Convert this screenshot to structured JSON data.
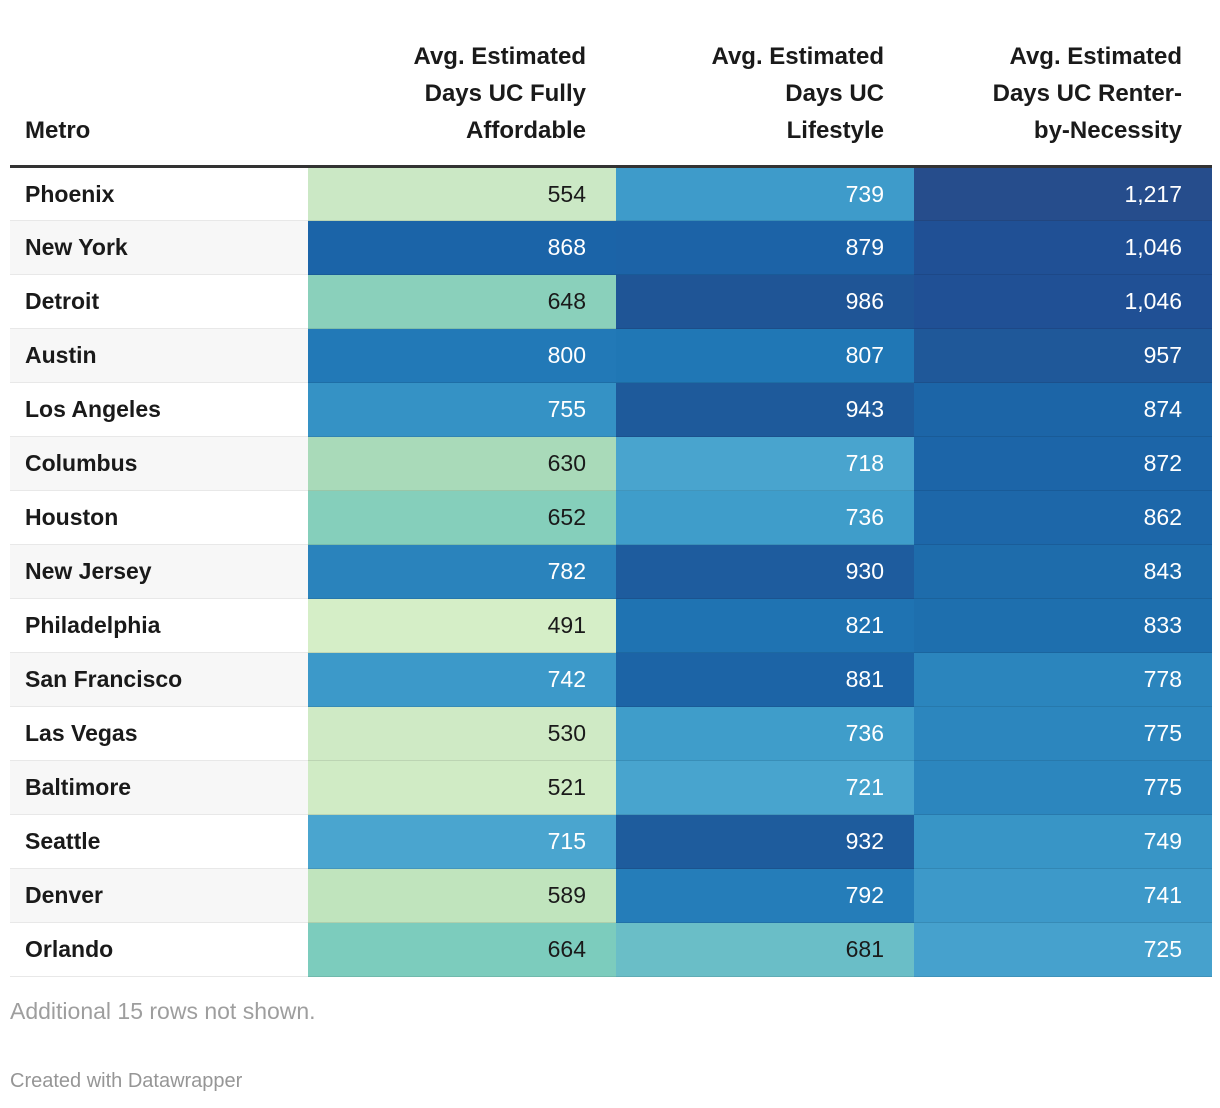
{
  "header": {
    "metro": "Metro",
    "columns": [
      "Avg. Estimated\nDays UC Fully\nAffordable",
      "Avg. Estimated\nDays UC\nLifestyle",
      "Avg. Estimated\nDays UC Renter-\nby-Necessity"
    ]
  },
  "rows": [
    {
      "metro": "Phoenix",
      "cells": [
        {
          "v": "554",
          "bg": "#cbe8c5",
          "fg": "dark"
        },
        {
          "v": "739",
          "bg": "#3e9bca",
          "fg": "light"
        },
        {
          "v": "1,217",
          "bg": "#264d8c",
          "fg": "light"
        }
      ]
    },
    {
      "metro": "New York",
      "cells": [
        {
          "v": "868",
          "bg": "#1b64a8",
          "fg": "light"
        },
        {
          "v": "879",
          "bg": "#1c63a7",
          "fg": "light"
        },
        {
          "v": "1,046",
          "bg": "#205095",
          "fg": "light"
        }
      ]
    },
    {
      "metro": "Detroit",
      "cells": [
        {
          "v": "648",
          "bg": "#8ad0bb",
          "fg": "dark"
        },
        {
          "v": "986",
          "bg": "#1f5596",
          "fg": "light"
        },
        {
          "v": "1,046",
          "bg": "#205095",
          "fg": "light"
        }
      ]
    },
    {
      "metro": "Austin",
      "cells": [
        {
          "v": "800",
          "bg": "#2279b7",
          "fg": "light"
        },
        {
          "v": "807",
          "bg": "#2077b5",
          "fg": "light"
        },
        {
          "v": "957",
          "bg": "#1f5899",
          "fg": "light"
        }
      ]
    },
    {
      "metro": "Los Angeles",
      "cells": [
        {
          "v": "755",
          "bg": "#3592c5",
          "fg": "light"
        },
        {
          "v": "943",
          "bg": "#1e5a9b",
          "fg": "light"
        },
        {
          "v": "874",
          "bg": "#1c65a7",
          "fg": "light"
        }
      ]
    },
    {
      "metro": "Columbus",
      "cells": [
        {
          "v": "630",
          "bg": "#a9dab9",
          "fg": "dark"
        },
        {
          "v": "718",
          "bg": "#49a4ce",
          "fg": "light"
        },
        {
          "v": "872",
          "bg": "#1c65a8",
          "fg": "light"
        }
      ]
    },
    {
      "metro": "Houston",
      "cells": [
        {
          "v": "652",
          "bg": "#85cfbb",
          "fg": "dark"
        },
        {
          "v": "736",
          "bg": "#3f9dca",
          "fg": "light"
        },
        {
          "v": "862",
          "bg": "#1d67a9",
          "fg": "light"
        }
      ]
    },
    {
      "metro": "New Jersey",
      "cells": [
        {
          "v": "782",
          "bg": "#2a83bc",
          "fg": "light"
        },
        {
          "v": "930",
          "bg": "#1e5c9e",
          "fg": "light"
        },
        {
          "v": "843",
          "bg": "#1e6cab",
          "fg": "light"
        }
      ]
    },
    {
      "metro": "Philadelphia",
      "cells": [
        {
          "v": "491",
          "bg": "#d5eec7",
          "fg": "dark"
        },
        {
          "v": "821",
          "bg": "#1f73b2",
          "fg": "light"
        },
        {
          "v": "833",
          "bg": "#1e6fae",
          "fg": "light"
        }
      ]
    },
    {
      "metro": "San Francisco",
      "cells": [
        {
          "v": "742",
          "bg": "#3c99c9",
          "fg": "light"
        },
        {
          "v": "881",
          "bg": "#1c64a6",
          "fg": "light"
        },
        {
          "v": "778",
          "bg": "#2b85bd",
          "fg": "light"
        }
      ]
    },
    {
      "metro": "Las Vegas",
      "cells": [
        {
          "v": "530",
          "bg": "#cfeac5",
          "fg": "dark"
        },
        {
          "v": "736",
          "bg": "#3f9dca",
          "fg": "light"
        },
        {
          "v": "775",
          "bg": "#2c86be",
          "fg": "light"
        }
      ]
    },
    {
      "metro": "Baltimore",
      "cells": [
        {
          "v": "521",
          "bg": "#d0ebc5",
          "fg": "dark"
        },
        {
          "v": "721",
          "bg": "#48a4ce",
          "fg": "light"
        },
        {
          "v": "775",
          "bg": "#2c86be",
          "fg": "light"
        }
      ]
    },
    {
      "metro": "Seattle",
      "cells": [
        {
          "v": "715",
          "bg": "#4aa5cf",
          "fg": "light"
        },
        {
          "v": "932",
          "bg": "#1e5c9d",
          "fg": "light"
        },
        {
          "v": "749",
          "bg": "#3895c6",
          "fg": "light"
        }
      ]
    },
    {
      "metro": "Denver",
      "cells": [
        {
          "v": "589",
          "bg": "#c0e4bd",
          "fg": "dark"
        },
        {
          "v": "792",
          "bg": "#257db9",
          "fg": "light"
        },
        {
          "v": "741",
          "bg": "#3d99c9",
          "fg": "light"
        }
      ]
    },
    {
      "metro": "Orlando",
      "cells": [
        {
          "v": "664",
          "bg": "#7cccbd",
          "fg": "dark"
        },
        {
          "v": "681",
          "bg": "#6abec7",
          "fg": "dark"
        },
        {
          "v": "725",
          "bg": "#46a1cd",
          "fg": "light"
        }
      ]
    }
  ],
  "footer": {
    "note": "Additional 15 rows not shown.",
    "attribution": "Created with Datawrapper"
  },
  "style_colors": {
    "header_border": "#333333",
    "row_stripe": "#f7f7f7",
    "muted_text": "#9e9e9e"
  },
  "chart_data": {
    "type": "table",
    "columns": [
      "Metro",
      "Avg. Estimated Days UC Fully Affordable",
      "Avg. Estimated Days UC Lifestyle",
      "Avg. Estimated Days UC Renter-by-Necessity"
    ],
    "rows": [
      [
        "Phoenix",
        554,
        739,
        1217
      ],
      [
        "New York",
        868,
        879,
        1046
      ],
      [
        "Detroit",
        648,
        986,
        1046
      ],
      [
        "Austin",
        800,
        807,
        957
      ],
      [
        "Los Angeles",
        755,
        943,
        874
      ],
      [
        "Columbus",
        630,
        718,
        872
      ],
      [
        "Houston",
        652,
        736,
        862
      ],
      [
        "New Jersey",
        782,
        930,
        843
      ],
      [
        "Philadelphia",
        491,
        821,
        833
      ],
      [
        "San Francisco",
        742,
        881,
        778
      ],
      [
        "Las Vegas",
        530,
        736,
        775
      ],
      [
        "Baltimore",
        521,
        721,
        775
      ],
      [
        "Seattle",
        715,
        932,
        749
      ],
      [
        "Denver",
        589,
        792,
        741
      ],
      [
        "Orlando",
        664,
        681,
        725
      ]
    ],
    "note": "Additional 15 rows not shown.",
    "value_range": [
      491,
      1217
    ],
    "color_scale": {
      "description": "sequential green-to-blue heatmap applied to cell values",
      "low": "#d5eec7",
      "mid": "#4aa5cf",
      "high": "#264d8c"
    }
  }
}
